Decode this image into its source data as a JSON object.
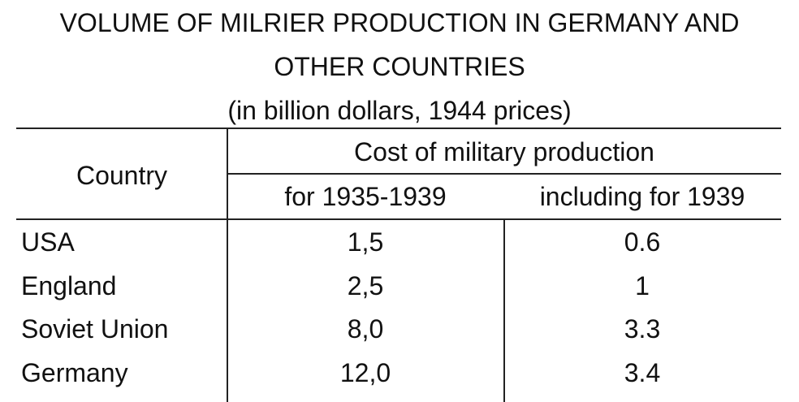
{
  "title": {
    "line1": "VOLUME OF MILRIER PRODUCTION IN GERMANY AND",
    "line2": "OTHER COUNTRIES",
    "subtitle": "(in billion dollars, 1944 prices)"
  },
  "table": {
    "header": {
      "country": "Country",
      "group": "Cost of military production",
      "col1": "for 1935-1939",
      "col2": "including for 1939"
    },
    "rows": [
      {
        "country": "USA",
        "v1": "1,5",
        "v2": "0.6"
      },
      {
        "country": "England",
        "v1": "2,5",
        "v2": "1"
      },
      {
        "country": "Soviet Union",
        "v1": "8,0",
        "v2": "3.3"
      },
      {
        "country": "Germany",
        "v1": "12,0",
        "v2": "3.4"
      }
    ]
  }
}
